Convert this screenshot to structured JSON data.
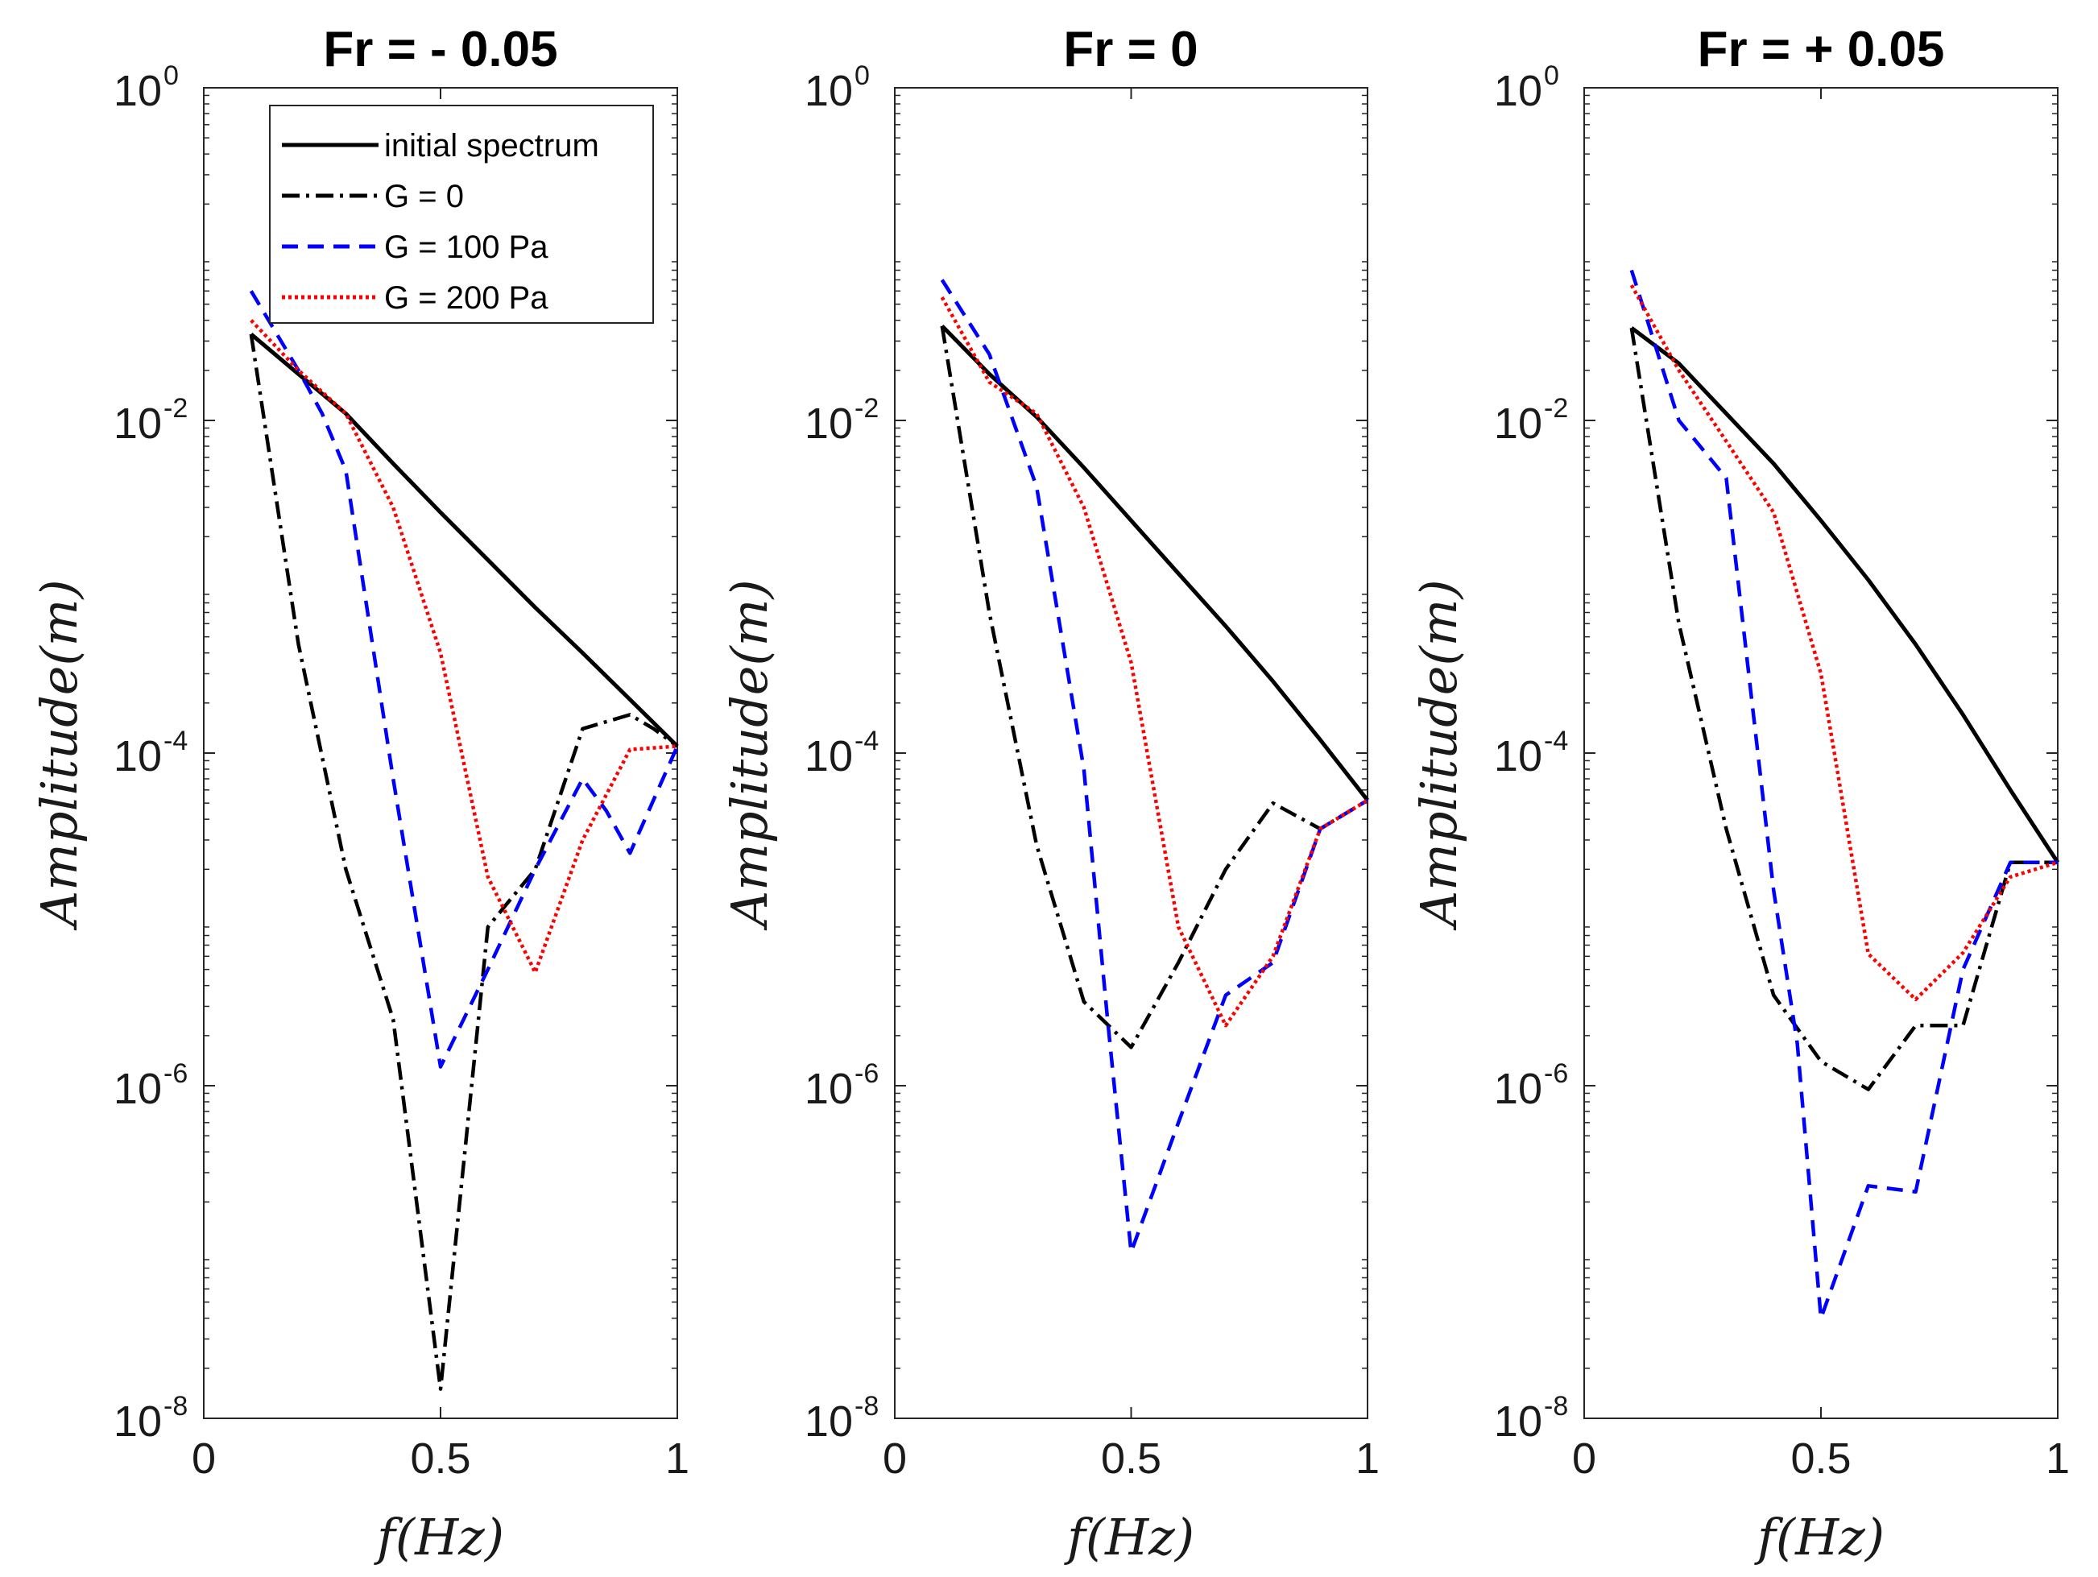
{
  "chart_data": [
    {
      "type": "line",
      "title": "Fr = - 0.05",
      "xlabel": "f(Hz)",
      "ylabel": "Amplitude(m)",
      "xscale": "linear",
      "yscale": "log",
      "xlim": [
        0,
        1
      ],
      "ylim": [
        1e-08,
        1
      ],
      "xticks": [
        {
          "v": 0,
          "label": "0"
        },
        {
          "v": 0.5,
          "label": "0.5"
        },
        {
          "v": 1,
          "label": "1"
        }
      ],
      "yticks": [
        {
          "v": 0,
          "base": "10",
          "exp": "0"
        },
        {
          "v": -2,
          "base": "10",
          "exp": "-2"
        },
        {
          "v": -4,
          "base": "10",
          "exp": "-4"
        },
        {
          "v": -6,
          "base": "10",
          "exp": "-6"
        },
        {
          "v": -8,
          "base": "10",
          "exp": "-8"
        }
      ],
      "legend": {
        "location": "top-right",
        "entries": [
          "initial spectrum",
          "G = 0",
          "G = 100 Pa",
          "G = 200 Pa"
        ]
      },
      "series": [
        {
          "name": "initial spectrum",
          "style": "solid",
          "color": "#000000",
          "x": [
            0.1,
            0.2,
            0.3,
            0.4,
            0.5,
            0.6,
            0.7,
            0.8,
            0.9,
            1.0
          ],
          "y": [
            0.033,
            0.019,
            0.011,
            0.0055,
            0.0028,
            0.00145,
            0.00075,
            0.0004,
            0.00021,
            0.00011
          ]
        },
        {
          "name": "G = 0",
          "style": "dashdot",
          "color": "#000000",
          "x": [
            0.1,
            0.2,
            0.3,
            0.4,
            0.5,
            0.6,
            0.7,
            0.8,
            0.9,
            0.95,
            1.0
          ],
          "y": [
            0.033,
            0.00045,
            2e-05,
            2.5e-06,
            1.5e-08,
            9e-06,
            2e-05,
            0.00014,
            0.00017,
            0.00014,
            0.00011
          ]
        },
        {
          "name": "G = 100 Pa",
          "style": "dashed",
          "color": "#0000ff",
          "x": [
            0.1,
            0.2,
            0.25,
            0.3,
            0.4,
            0.5,
            0.6,
            0.7,
            0.8,
            0.85,
            0.9,
            1.0
          ],
          "y": [
            0.06,
            0.02,
            0.011,
            0.005,
            7e-05,
            1.3e-06,
            5e-06,
            2e-05,
            7e-05,
            4.5e-05,
            2.5e-05,
            0.00011
          ]
        },
        {
          "name": "G = 200 Pa",
          "style": "dotted",
          "color": "#ff0000",
          "x": [
            0.1,
            0.2,
            0.3,
            0.4,
            0.5,
            0.6,
            0.7,
            0.8,
            0.9,
            1.0
          ],
          "y": [
            0.04,
            0.02,
            0.011,
            0.003,
            0.0004,
            1.8e-05,
            4.8e-06,
            3e-05,
            0.000105,
            0.00011
          ]
        }
      ]
    },
    {
      "type": "line",
      "title": "Fr = 0",
      "xlabel": "f(Hz)",
      "ylabel": "Amplitude(m)",
      "xscale": "linear",
      "yscale": "log",
      "xlim": [
        0,
        1
      ],
      "ylim": [
        1e-08,
        1
      ],
      "xticks": [
        {
          "v": 0,
          "label": "0"
        },
        {
          "v": 0.5,
          "label": "0.5"
        },
        {
          "v": 1,
          "label": "1"
        }
      ],
      "yticks": [
        {
          "v": 0,
          "base": "10",
          "exp": "0"
        },
        {
          "v": -2,
          "base": "10",
          "exp": "-2"
        },
        {
          "v": -4,
          "base": "10",
          "exp": "-4"
        },
        {
          "v": -6,
          "base": "10",
          "exp": "-6"
        },
        {
          "v": -8,
          "base": "10",
          "exp": "-8"
        }
      ],
      "series": [
        {
          "name": "initial spectrum",
          "style": "solid",
          "color": "#000000",
          "x": [
            0.1,
            0.2,
            0.3,
            0.4,
            0.5,
            0.6,
            0.7,
            0.8,
            0.9,
            1.0
          ],
          "y": [
            0.037,
            0.019,
            0.0105,
            0.0052,
            0.0025,
            0.0012,
            0.00058,
            0.00027,
            0.00012,
            5.2e-05
          ]
        },
        {
          "name": "G = 0",
          "style": "dashdot",
          "color": "#000000",
          "x": [
            0.1,
            0.2,
            0.3,
            0.4,
            0.5,
            0.6,
            0.7,
            0.8,
            0.9,
            1.0
          ],
          "y": [
            0.037,
            0.0007,
            2.8e-05,
            3.2e-06,
            1.7e-06,
            5.5e-06,
            2e-05,
            5e-05,
            3.5e-05,
            5.2e-05
          ]
        },
        {
          "name": "G = 100 Pa",
          "style": "dashed",
          "color": "#0000ff",
          "x": [
            0.1,
            0.2,
            0.3,
            0.4,
            0.45,
            0.5,
            0.6,
            0.7,
            0.8,
            0.9,
            1.0
          ],
          "y": [
            0.07,
            0.025,
            0.004,
            8e-05,
            2.5e-06,
            1e-07,
            6e-07,
            3.5e-06,
            5.5e-06,
            3.5e-05,
            5.2e-05
          ]
        },
        {
          "name": "G = 200 Pa",
          "style": "dotted",
          "color": "#ff0000",
          "x": [
            0.1,
            0.2,
            0.3,
            0.4,
            0.5,
            0.6,
            0.7,
            0.8,
            0.9,
            1.0
          ],
          "y": [
            0.055,
            0.017,
            0.011,
            0.003,
            0.00035,
            9e-06,
            2.3e-06,
            6e-06,
            3.5e-05,
            5.2e-05
          ]
        }
      ]
    },
    {
      "type": "line",
      "title": "Fr = + 0.05",
      "xlabel": "f(Hz)",
      "ylabel": "Amplitude(m)",
      "xscale": "linear",
      "yscale": "log",
      "xlim": [
        0,
        1
      ],
      "ylim": [
        1e-08,
        1
      ],
      "xticks": [
        {
          "v": 0,
          "label": "0"
        },
        {
          "v": 0.5,
          "label": "0.5"
        },
        {
          "v": 1,
          "label": "1"
        }
      ],
      "yticks": [
        {
          "v": 0,
          "base": "10",
          "exp": "0"
        },
        {
          "v": -2,
          "base": "10",
          "exp": "-2"
        },
        {
          "v": -4,
          "base": "10",
          "exp": "-4"
        },
        {
          "v": -6,
          "base": "10",
          "exp": "-6"
        },
        {
          "v": -8,
          "base": "10",
          "exp": "-8"
        }
      ],
      "series": [
        {
          "name": "initial spectrum",
          "style": "solid",
          "color": "#000000",
          "x": [
            0.1,
            0.2,
            0.3,
            0.4,
            0.5,
            0.6,
            0.7,
            0.8,
            0.9,
            1.0
          ],
          "y": [
            0.036,
            0.022,
            0.011,
            0.0055,
            0.0025,
            0.0011,
            0.00045,
            0.00017,
            6e-05,
            2.2e-05
          ]
        },
        {
          "name": "G = 0",
          "style": "dashdot",
          "color": "#000000",
          "x": [
            0.1,
            0.2,
            0.3,
            0.4,
            0.5,
            0.6,
            0.7,
            0.8,
            0.9,
            1.0
          ],
          "y": [
            0.036,
            0.0006,
            3.5e-05,
            3.5e-06,
            1.4e-06,
            9.5e-07,
            2.3e-06,
            2.3e-06,
            2.2e-05,
            2.2e-05
          ]
        },
        {
          "name": "G = 100 Pa",
          "style": "dashed",
          "color": "#0000ff",
          "x": [
            0.1,
            0.2,
            0.3,
            0.4,
            0.45,
            0.5,
            0.6,
            0.7,
            0.8,
            0.9,
            1.0
          ],
          "y": [
            0.08,
            0.01,
            0.0045,
            1.5e-05,
            1.8e-06,
            4e-08,
            2.5e-07,
            2.3e-07,
            5e-06,
            2.2e-05,
            2.2e-05
          ]
        },
        {
          "name": "G = 200 Pa",
          "style": "dotted",
          "color": "#ff0000",
          "x": [
            0.1,
            0.2,
            0.3,
            0.4,
            0.5,
            0.6,
            0.7,
            0.8,
            0.9,
            1.0
          ],
          "y": [
            0.065,
            0.02,
            0.0075,
            0.0028,
            0.0003,
            6.2e-06,
            3.3e-06,
            6.3e-06,
            1.8e-05,
            2.2e-05
          ]
        }
      ]
    }
  ]
}
